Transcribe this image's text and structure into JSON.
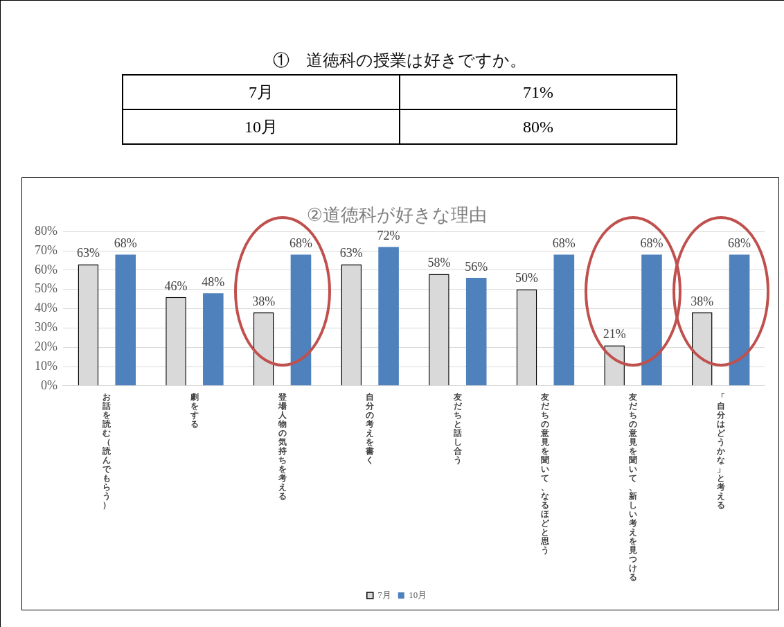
{
  "chart_data": [
    {
      "type": "other",
      "title": "①　道徳科の授業は好きですか。",
      "categories": [
        "7月",
        "10月"
      ],
      "values": [
        71,
        80
      ],
      "value_labels": [
        "71%",
        "80%"
      ]
    },
    {
      "type": "bar",
      "title": "②道徳科が好きな理由",
      "categories": [
        "お話を読む（読んでもらう）",
        "劇をする",
        "登場人物の気持ちを考える",
        "自分の考えを書く",
        "友だちと話し合う",
        "友だちの意見を聞いて、なるほどと思う",
        "友だちの意見を聞いて、新しい考えを見つける",
        "「自分はどうかな」と考える"
      ],
      "series": [
        {
          "name": "7月",
          "color": "#d9d9d9",
          "values": [
            63,
            46,
            38,
            63,
            58,
            50,
            21,
            38
          ],
          "value_labels": [
            "63%",
            "46%",
            "38%",
            "63%",
            "58%",
            "50%",
            "21%",
            "38%"
          ]
        },
        {
          "name": "10月",
          "color": "#4f81bd",
          "values": [
            68,
            48,
            68,
            72,
            56,
            68,
            68,
            68
          ],
          "value_labels": [
            "68%",
            "48%",
            "68%",
            "72%",
            "56%",
            "68%",
            "68%",
            "68%"
          ]
        }
      ],
      "ylim": [
        0,
        80
      ],
      "yticks": [
        {
          "value": 0,
          "label": "0%"
        },
        {
          "value": 10,
          "label": "10%"
        },
        {
          "value": 20,
          "label": "20%"
        },
        {
          "value": 30,
          "label": "30%"
        },
        {
          "value": 40,
          "label": "40%"
        },
        {
          "value": 50,
          "label": "50%"
        },
        {
          "value": 60,
          "label": "60%"
        },
        {
          "value": 70,
          "label": "70%"
        },
        {
          "value": 80,
          "label": "80%"
        }
      ],
      "grid": "y",
      "legend": "bottom"
    }
  ]
}
